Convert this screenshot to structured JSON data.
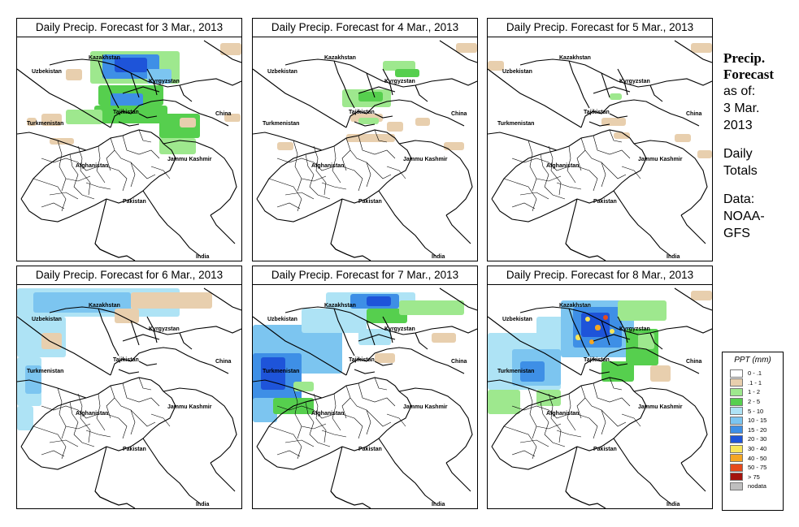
{
  "panels": [
    {
      "title": "Daily Precip. Forecast for  3 Mar., 2013"
    },
    {
      "title": "Daily Precip. Forecast for  4 Mar., 2013"
    },
    {
      "title": "Daily Precip. Forecast for  5 Mar., 2013"
    },
    {
      "title": "Daily Precip. Forecast for  6 Mar., 2013"
    },
    {
      "title": "Daily Precip. Forecast for  7 Mar., 2013"
    },
    {
      "title": "Daily Precip. Forecast for  8 Mar., 2013"
    }
  ],
  "map_labels": {
    "kazakhstan": "Kazakhstan",
    "uzbekistan": "Uzbekistan",
    "kyrgyzstan": "Kyrgyzstan",
    "tajikistan": "Tajikistan",
    "china": "China",
    "turkmenistan": "Turkmenistan",
    "afghanistan": "Afghanistan",
    "jammu": "Jammu Kashmir",
    "pakistan": "Pakistan",
    "india": "India"
  },
  "side": {
    "line1": "Precip.",
    "line2": "Forecast",
    "asof1": "as of:",
    "asof2": "3 Mar.",
    "asof3": "2013",
    "daily1": "Daily",
    "daily2": "Totals",
    "data1": "Data:",
    "data2": "NOAA-",
    "data3": "GFS"
  },
  "legend": {
    "title": "PPT (mm)",
    "items": [
      {
        "label": "0 - .1",
        "color": "#ffffff"
      },
      {
        "label": ".1 - 1",
        "color": "#e8cfae"
      },
      {
        "label": "1 - 2",
        "color": "#9ee88e"
      },
      {
        "label": "2 - 5",
        "color": "#56cf4e"
      },
      {
        "label": "5 - 10",
        "color": "#aee3f5"
      },
      {
        "label": "10 - 15",
        "color": "#7cc5f0"
      },
      {
        "label": "15 - 20",
        "color": "#3e8fe6"
      },
      {
        "label": "20 - 30",
        "color": "#1e54d9"
      },
      {
        "label": "30 - 40",
        "color": "#f7e55a"
      },
      {
        "label": "40 - 50",
        "color": "#f5a623"
      },
      {
        "label": "50 - 75",
        "color": "#e64a1c"
      },
      {
        "label": "> 75",
        "color": "#a3140e"
      },
      {
        "label": "nodata",
        "color": "#bfbfbf"
      }
    ]
  },
  "precip_level_by_panel": [
    "heavy",
    "light",
    "minimal",
    "moderate-west",
    "heavy-west",
    "heavy-central"
  ]
}
